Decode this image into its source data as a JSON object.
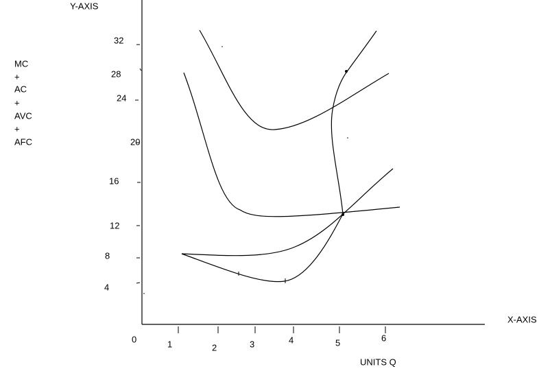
{
  "y_axis_title": "Y-AXIS",
  "legend_lines": [
    "MC",
    "+",
    "AC",
    "+",
    "AVC",
    "+",
    "AFC"
  ],
  "y_labels": [
    "32",
    "28",
    "24",
    "20",
    "16",
    "12",
    "8",
    "4"
  ],
  "x_labels": [
    "0",
    "1",
    "2",
    "3",
    "4",
    "5",
    "6"
  ],
  "x_axis_title": "X-AXIS",
  "x_axis_caption": "UNITS  Q"
}
